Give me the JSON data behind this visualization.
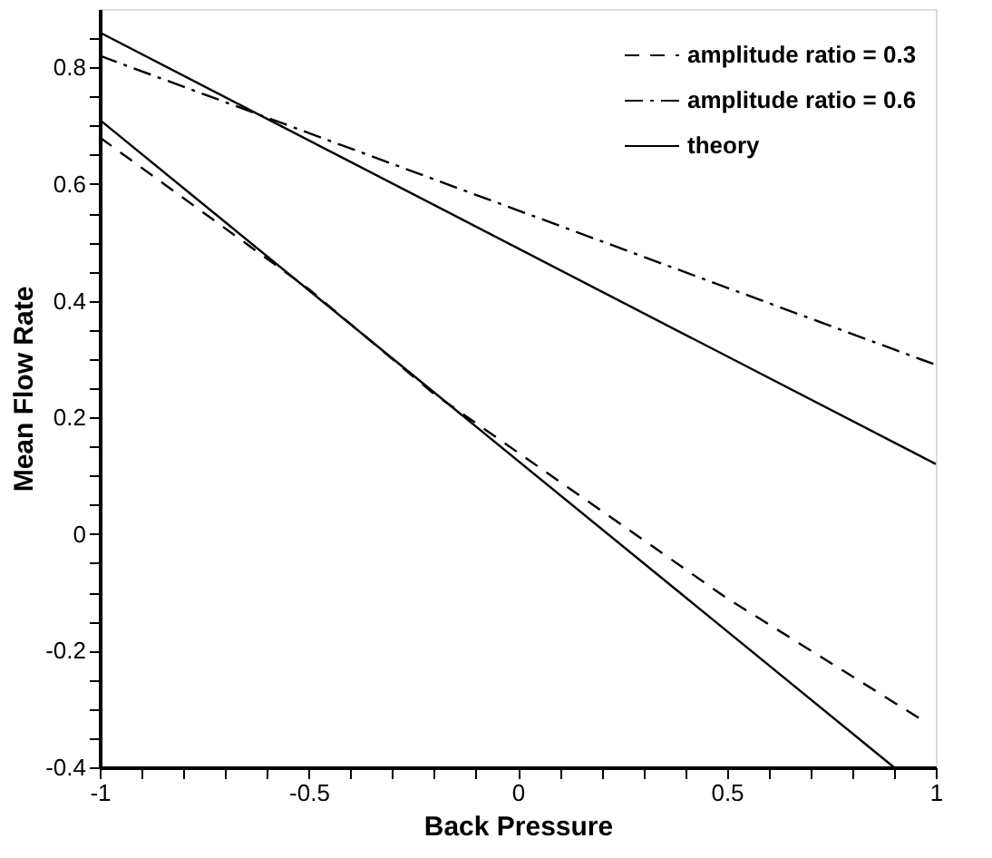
{
  "chart_data": {
    "type": "line",
    "xlabel": "Back Pressure",
    "ylabel": "Mean Flow Rate",
    "xlim": [
      -1,
      1
    ],
    "ylim": [
      -0.4,
      0.9
    ],
    "xticks": [
      -1,
      {
        "value": -0.9,
        "label": null
      },
      {
        "value": -0.8,
        "label": null
      },
      {
        "value": -0.7,
        "label": null
      },
      {
        "value": -0.6,
        "label": null
      },
      -0.5,
      {
        "value": -0.4,
        "label": null
      },
      {
        "value": -0.3,
        "label": null
      },
      {
        "value": -0.2,
        "label": null
      },
      {
        "value": -0.1,
        "label": null
      },
      0,
      {
        "value": 0.1,
        "label": null
      },
      {
        "value": 0.2,
        "label": null
      },
      {
        "value": 0.3,
        "label": null
      },
      {
        "value": 0.4,
        "label": null
      },
      0.5,
      {
        "value": 0.6,
        "label": null
      },
      {
        "value": 0.7,
        "label": null
      },
      {
        "value": 0.8,
        "label": null
      },
      {
        "value": 0.9,
        "label": null
      },
      1
    ],
    "yticks": [
      -0.4,
      {
        "value": -0.35,
        "label": null
      },
      {
        "value": -0.3,
        "label": null
      },
      {
        "value": -0.25,
        "label": null
      },
      -0.2,
      {
        "value": -0.15,
        "label": null
      },
      {
        "value": -0.1,
        "label": null
      },
      {
        "value": -0.05,
        "label": null
      },
      0,
      {
        "value": 0.05,
        "label": null
      },
      {
        "value": 0.1,
        "label": null
      },
      {
        "value": 0.15,
        "label": null
      },
      0.2,
      {
        "value": 0.25,
        "label": null
      },
      {
        "value": 0.3,
        "label": null
      },
      {
        "value": 0.35,
        "label": null
      },
      0.4,
      {
        "value": 0.45,
        "label": null
      },
      {
        "value": 0.5,
        "label": null
      },
      {
        "value": 0.55,
        "label": null
      },
      0.6,
      {
        "value": 0.65,
        "label": null
      },
      {
        "value": 0.7,
        "label": null
      },
      {
        "value": 0.75,
        "label": null
      },
      0.8,
      {
        "value": 0.85,
        "label": null
      }
    ],
    "grid": false,
    "legend": "top right",
    "marker": "none",
    "series": [
      {
        "name": "amplitude ratio = 0.3",
        "color": "#000000",
        "line_style": "dashed",
        "x": [
          -1,
          -0.5,
          -0.2,
          0,
          0.5,
          0.97
        ],
        "values": [
          0.68,
          0.42,
          0.24,
          0.14,
          -0.11,
          -0.32
        ]
      },
      {
        "name": "amplitude ratio = 0.6",
        "color": "#000000",
        "line_style": "dashdot",
        "x": [
          -1,
          1
        ],
        "values": [
          0.82,
          0.29
        ]
      },
      {
        "name": "theory",
        "color": "#000000",
        "line_style": "solid",
        "x": [
          -1,
          1
        ],
        "values": [
          0.86,
          0.12
        ]
      },
      {
        "color": "#000000",
        "line_style": "solid",
        "x": [
          -1,
          0.9
        ],
        "values": [
          0.71,
          -0.4
        ]
      }
    ]
  }
}
